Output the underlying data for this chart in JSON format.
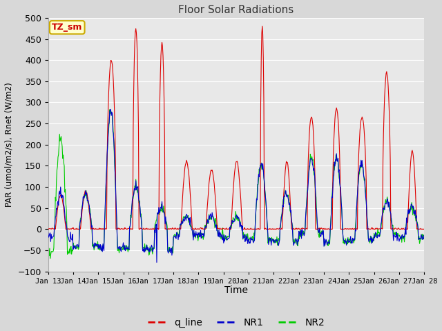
{
  "title": "Floor Solar Radiations",
  "xlabel": "Time",
  "ylabel": "PAR (umol/m2/s), Rnet (W/m2)",
  "ylim": [
    -100,
    500
  ],
  "x_tick_labels": [
    "Jan 13",
    "Jan 14",
    "Jan 15",
    "Jan 16",
    "Jan 17",
    "Jan 18",
    "Jan 19",
    "Jan 20",
    "Jan 21",
    "Jan 22",
    "Jan 23",
    "Jan 24",
    "Jan 25",
    "Jan 26",
    "Jan 27",
    "Jan 28"
  ],
  "legend_labels": [
    "q_line",
    "NR1",
    "NR2"
  ],
  "legend_colors": [
    "#dd0000",
    "#0000cc",
    "#00cc00"
  ],
  "annotation_text": "TZ_sm",
  "annotation_bg": "#ffffcc",
  "annotation_border": "#ccaa00",
  "bg_color": "#d8d8d8",
  "plot_bg": "#e8e8e8",
  "grid_color": "#ffffff",
  "title_color": "#333333",
  "n_days": 15,
  "pts_per_day": 48
}
